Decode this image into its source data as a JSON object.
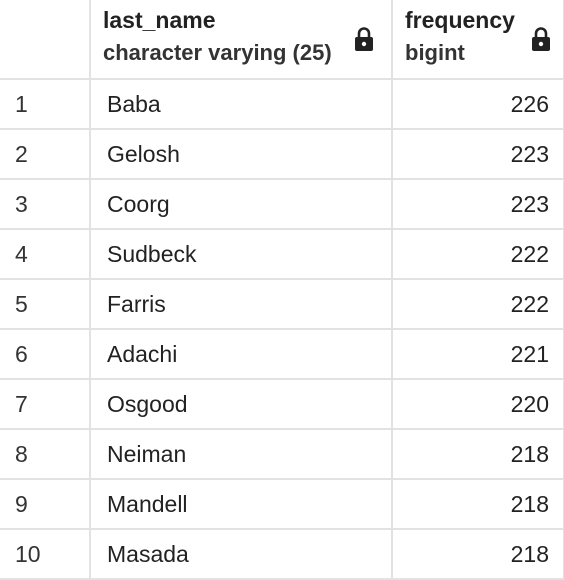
{
  "columns": [
    {
      "name": "last_name",
      "type": "character varying (25)",
      "lock_icon": "lock-icon"
    },
    {
      "name": "frequency",
      "type": "bigint",
      "lock_icon": "lock-icon"
    }
  ],
  "rows": [
    {
      "index": "1",
      "last_name": "Baba",
      "frequency": "226"
    },
    {
      "index": "2",
      "last_name": "Gelosh",
      "frequency": "223"
    },
    {
      "index": "3",
      "last_name": "Coorg",
      "frequency": "223"
    },
    {
      "index": "4",
      "last_name": "Sudbeck",
      "frequency": "222"
    },
    {
      "index": "5",
      "last_name": "Farris",
      "frequency": "222"
    },
    {
      "index": "6",
      "last_name": "Adachi",
      "frequency": "221"
    },
    {
      "index": "7",
      "last_name": "Osgood",
      "frequency": "220"
    },
    {
      "index": "8",
      "last_name": "Neiman",
      "frequency": "218"
    },
    {
      "index": "9",
      "last_name": "Mandell",
      "frequency": "218"
    },
    {
      "index": "10",
      "last_name": "Masada",
      "frequency": "218"
    }
  ]
}
